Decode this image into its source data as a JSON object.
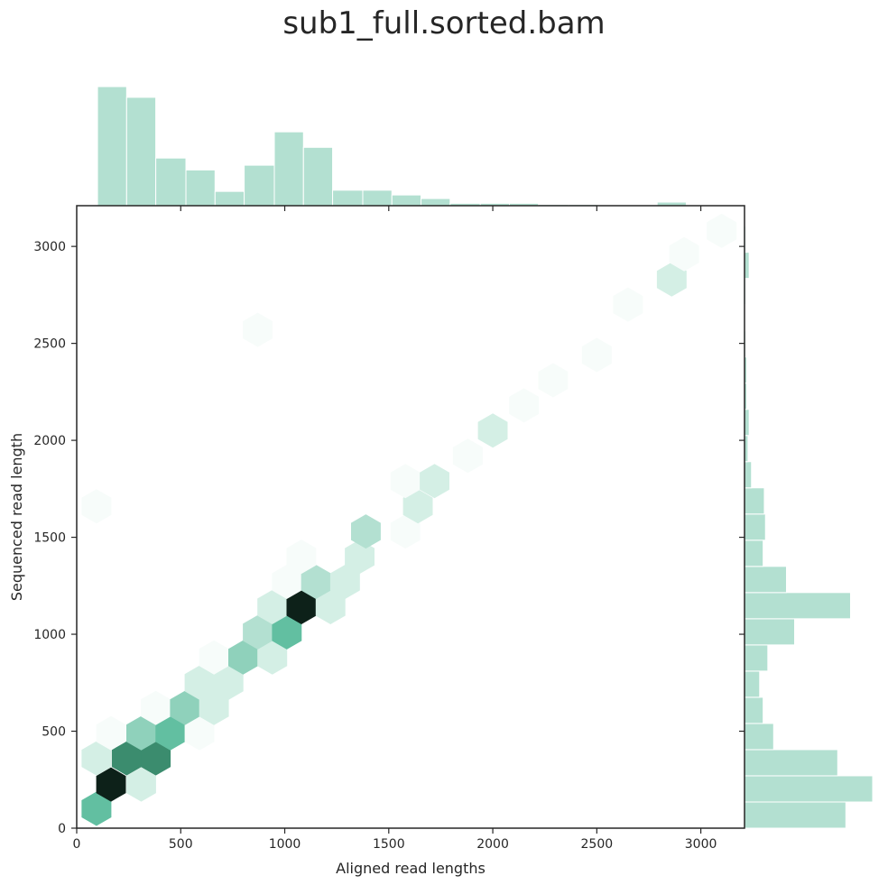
{
  "chart_data": {
    "type": "hexbin",
    "title": "sub1_full.sorted.bam",
    "xlabel": "Aligned read lengths",
    "ylabel": "Sequenced read length",
    "xlim": [
      0,
      3210
    ],
    "ylim": [
      0,
      3210
    ],
    "xticks": [
      "0",
      "500",
      "1000",
      "1500",
      "2000",
      "2500",
      "3000"
    ],
    "yticks": [
      "0",
      "500",
      "1000",
      "1500",
      "2000",
      "2500",
      "3000"
    ],
    "grid": false,
    "colors": {
      "marginal_fill": "#b3e0d1",
      "marginal_edge": "#ffffff",
      "axis": "#262626",
      "hex_ramp": [
        "#f7fcfa",
        "#d4efe5",
        "#b3e0d1",
        "#8fd1bb",
        "#62bfa1",
        "#3b8c6e",
        "#0d2119"
      ]
    },
    "hexbins": [
      {
        "x": 95,
        "y": 100,
        "level": 4
      },
      {
        "x": 165,
        "y": 225,
        "level": 6
      },
      {
        "x": 310,
        "y": 225,
        "level": 1
      },
      {
        "x": 95,
        "y": 360,
        "level": 1
      },
      {
        "x": 240,
        "y": 360,
        "level": 5
      },
      {
        "x": 380,
        "y": 360,
        "level": 5
      },
      {
        "x": 165,
        "y": 490,
        "level": 0
      },
      {
        "x": 310,
        "y": 490,
        "level": 3
      },
      {
        "x": 450,
        "y": 490,
        "level": 4
      },
      {
        "x": 590,
        "y": 490,
        "level": 0
      },
      {
        "x": 380,
        "y": 620,
        "level": 0
      },
      {
        "x": 520,
        "y": 620,
        "level": 3
      },
      {
        "x": 660,
        "y": 620,
        "level": 1
      },
      {
        "x": 590,
        "y": 750,
        "level": 1
      },
      {
        "x": 730,
        "y": 750,
        "level": 1
      },
      {
        "x": 660,
        "y": 880,
        "level": 0
      },
      {
        "x": 800,
        "y": 880,
        "level": 3
      },
      {
        "x": 940,
        "y": 880,
        "level": 1
      },
      {
        "x": 870,
        "y": 1010,
        "level": 2
      },
      {
        "x": 1010,
        "y": 1010,
        "level": 4
      },
      {
        "x": 940,
        "y": 1140,
        "level": 1
      },
      {
        "x": 1080,
        "y": 1140,
        "level": 6
      },
      {
        "x": 1220,
        "y": 1140,
        "level": 1
      },
      {
        "x": 1010,
        "y": 1270,
        "level": 0
      },
      {
        "x": 1150,
        "y": 1270,
        "level": 2
      },
      {
        "x": 1290,
        "y": 1270,
        "level": 1
      },
      {
        "x": 1080,
        "y": 1400,
        "level": 0
      },
      {
        "x": 1360,
        "y": 1400,
        "level": 1
      },
      {
        "x": 1390,
        "y": 1530,
        "level": 2
      },
      {
        "x": 1580,
        "y": 1530,
        "level": 0
      },
      {
        "x": 1640,
        "y": 1660,
        "level": 1
      },
      {
        "x": 1580,
        "y": 1790,
        "level": 0
      },
      {
        "x": 1720,
        "y": 1790,
        "level": 1
      },
      {
        "x": 1880,
        "y": 1920,
        "level": 0
      },
      {
        "x": 2000,
        "y": 2050,
        "level": 1
      },
      {
        "x": 2150,
        "y": 2180,
        "level": 0
      },
      {
        "x": 2290,
        "y": 2310,
        "level": 0
      },
      {
        "x": 2500,
        "y": 2440,
        "level": 0
      },
      {
        "x": 2650,
        "y": 2700,
        "level": 0
      },
      {
        "x": 2860,
        "y": 2830,
        "level": 1
      },
      {
        "x": 2920,
        "y": 2960,
        "level": 0
      },
      {
        "x": 3100,
        "y": 3080,
        "level": 0
      },
      {
        "x": 870,
        "y": 2570,
        "level": 0
      },
      {
        "x": 95,
        "y": 1660,
        "level": 0
      }
    ],
    "marginal_x": {
      "bin_edges": [
        100,
        240,
        380,
        525,
        665,
        805,
        950,
        1090,
        1230,
        1375,
        1515,
        1655,
        1795,
        1940,
        2080,
        2220,
        2365,
        2505,
        2645,
        2790,
        2930
      ],
      "counts": [
        100,
        91,
        40,
        30,
        12,
        34,
        62,
        49,
        13,
        13,
        9,
        6,
        2,
        2,
        2,
        1,
        1,
        0,
        0,
        3
      ]
    },
    "marginal_y": {
      "bin_edges": [
        0,
        135,
        270,
        405,
        540,
        675,
        810,
        945,
        1080,
        1215,
        1350,
        1485,
        1620,
        1755,
        1890,
        2025,
        2160,
        2295,
        2430,
        2565,
        2700,
        2835,
        2970,
        3105
      ],
      "counts": [
        87,
        110,
        80,
        25,
        16,
        13,
        20,
        43,
        91,
        36,
        16,
        18,
        17,
        6,
        3,
        4,
        2,
        2,
        1,
        0,
        1,
        4,
        1
      ]
    }
  }
}
